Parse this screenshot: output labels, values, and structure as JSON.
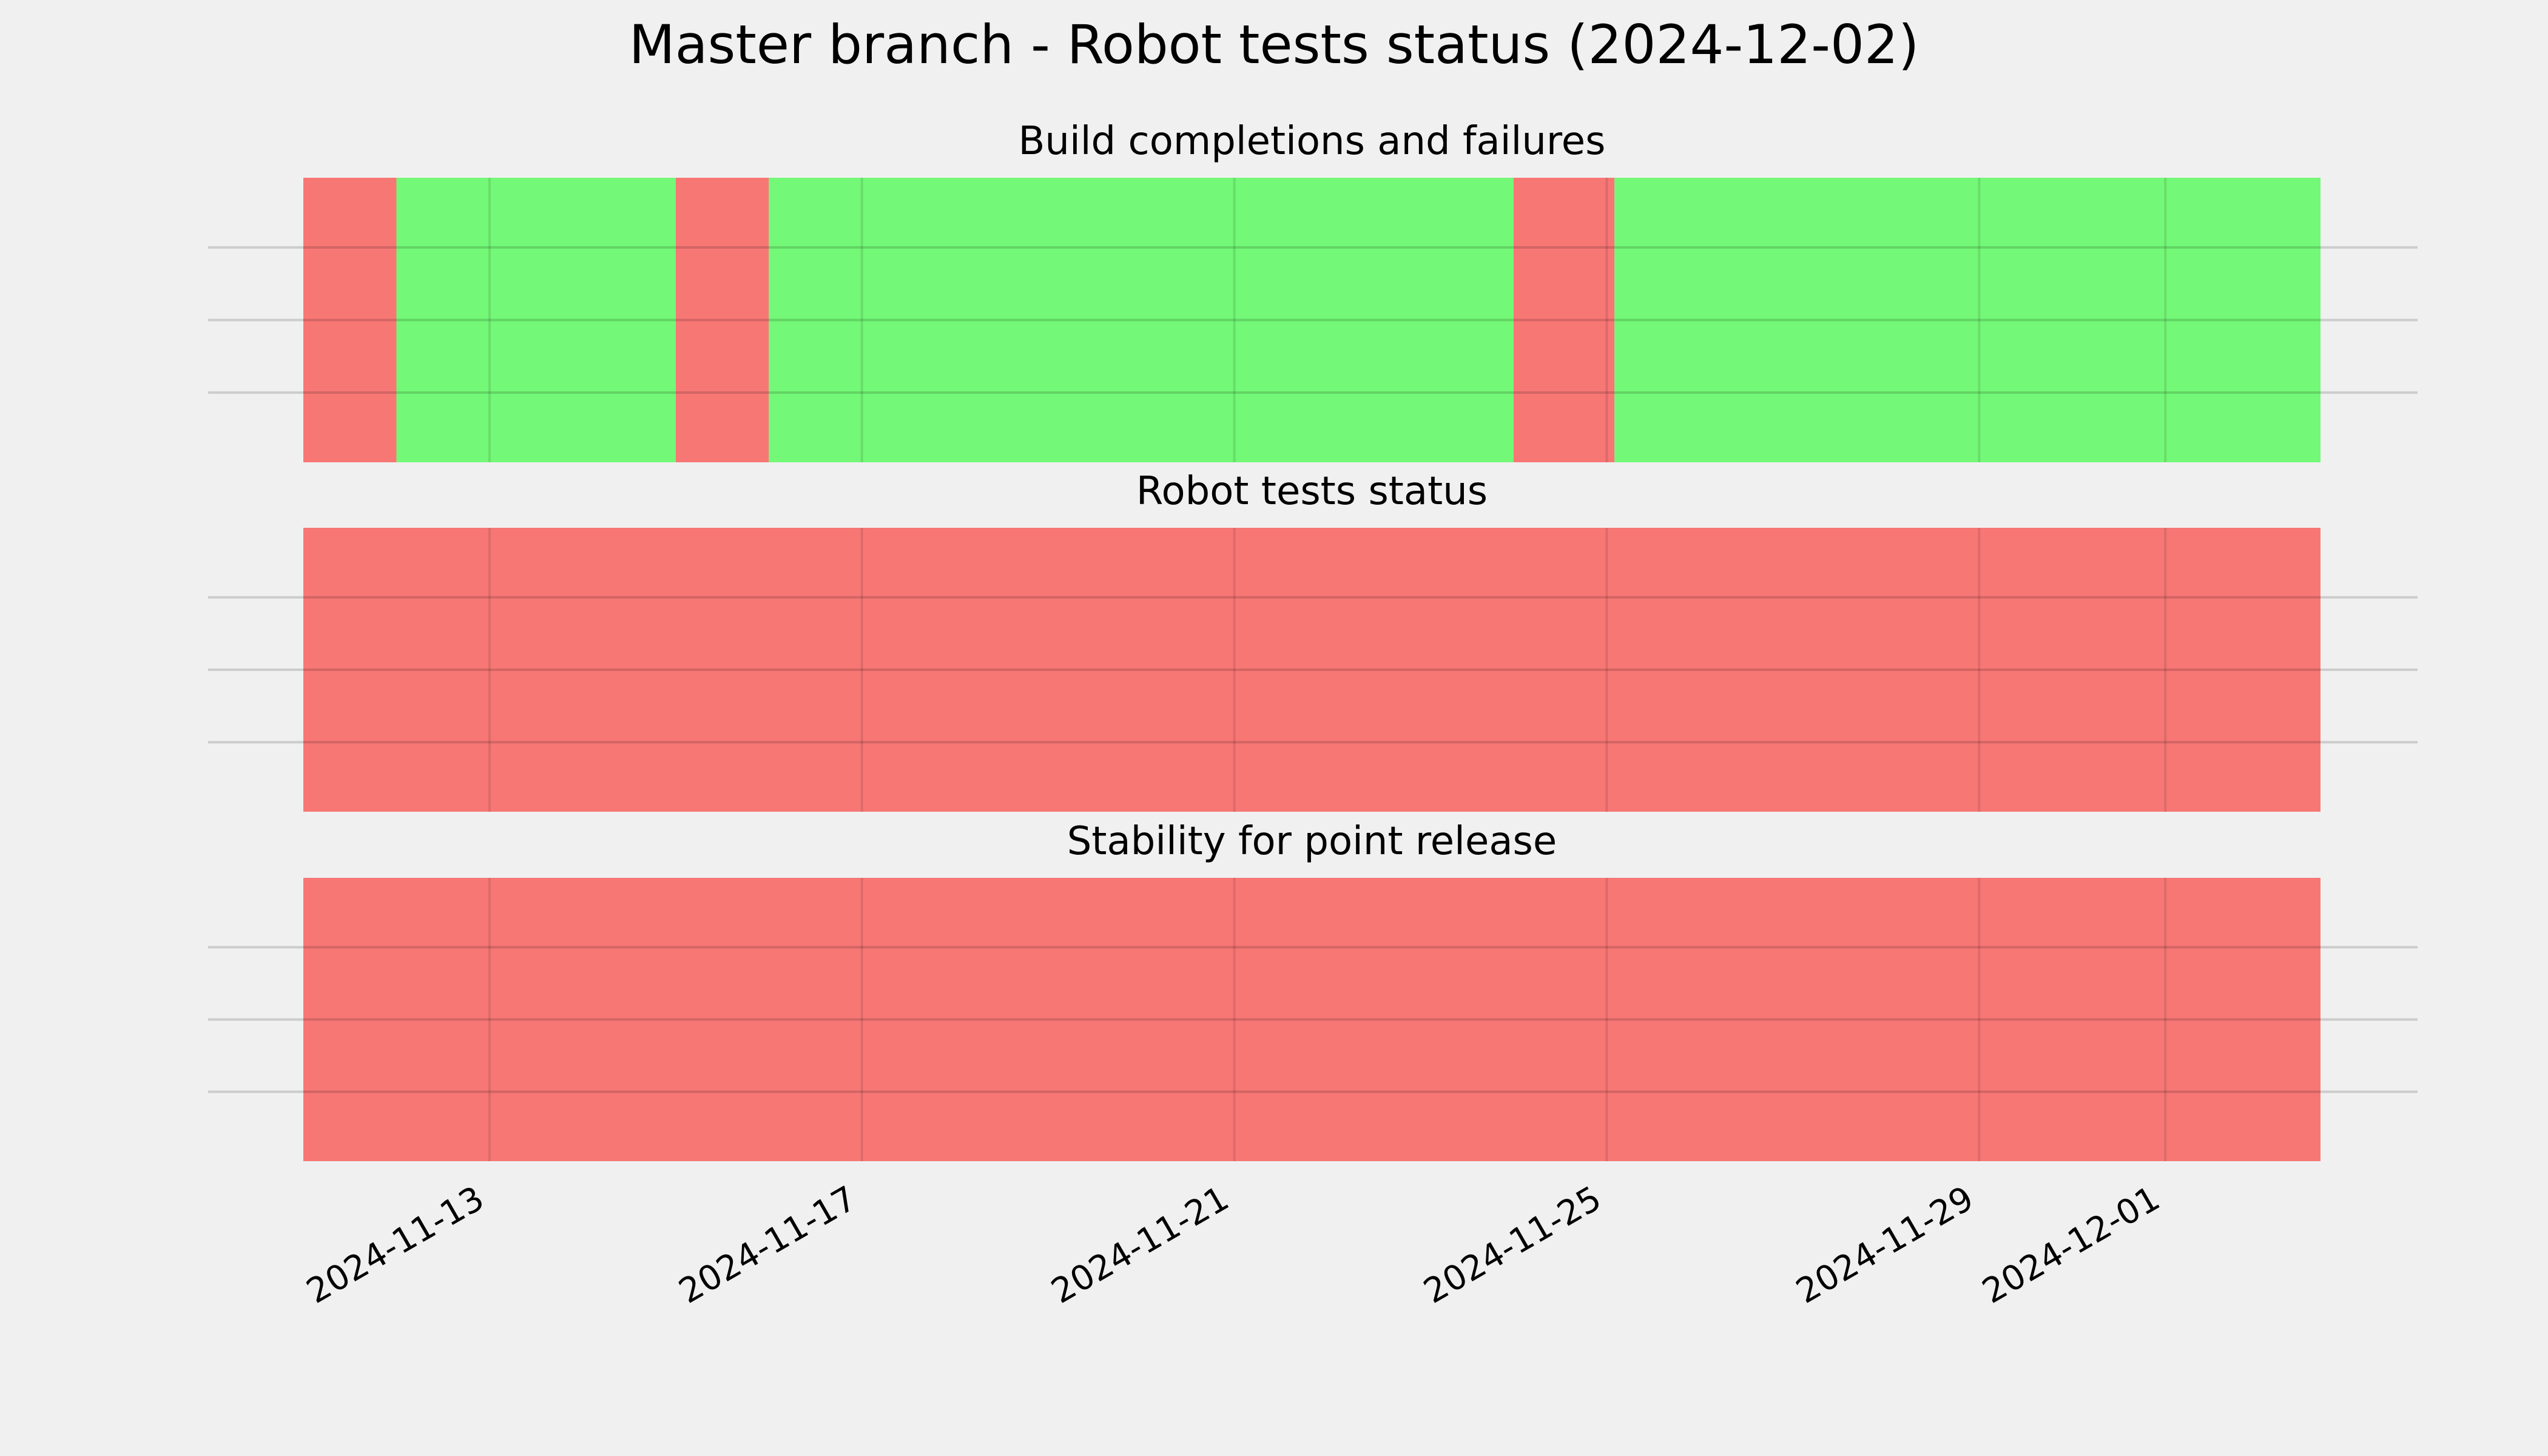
{
  "chart_data": [
    {
      "type": "bar",
      "title": "Build completions and failures",
      "x_tick_labels": [
        "2024-11-13",
        "2024-11-17",
        "2024-11-21",
        "2024-11-25",
        "2024-11-29",
        "2024-12-01"
      ],
      "x_range": [
        "2024-11-11",
        "2024-12-02 16:00"
      ],
      "grid": true,
      "segments": [
        {
          "start": "2024-11-11 00:00",
          "end": "2024-11-12 00:00",
          "status": "fail"
        },
        {
          "start": "2024-11-12 00:00",
          "end": "2024-11-15 00:00",
          "status": "pass"
        },
        {
          "start": "2024-11-15 00:00",
          "end": "2024-11-16 00:00",
          "status": "fail"
        },
        {
          "start": "2024-11-16 00:00",
          "end": "2024-11-24 00:00",
          "status": "pass"
        },
        {
          "start": "2024-11-24 00:00",
          "end": "2024-11-25 02:00",
          "status": "fail"
        },
        {
          "start": "2024-11-25 02:00",
          "end": "2024-12-02 16:00",
          "status": "pass"
        }
      ]
    },
    {
      "type": "bar",
      "title": "Robot tests status",
      "x_tick_labels": [
        "2024-11-13",
        "2024-11-17",
        "2024-11-21",
        "2024-11-25",
        "2024-11-29",
        "2024-12-01"
      ],
      "x_range": [
        "2024-11-11",
        "2024-12-02 16:00"
      ],
      "grid": true,
      "segments": [
        {
          "start": "2024-11-11 00:00",
          "end": "2024-12-02 16:00",
          "status": "fail"
        }
      ]
    },
    {
      "type": "bar",
      "title": "Stability for point release",
      "x_tick_labels": [
        "2024-11-13",
        "2024-11-17",
        "2024-11-21",
        "2024-11-25",
        "2024-11-29",
        "2024-12-01"
      ],
      "x_range": [
        "2024-11-11",
        "2024-12-02 16:00"
      ],
      "grid": true,
      "segments": [
        {
          "start": "2024-11-11 00:00",
          "end": "2024-12-02 16:00",
          "status": "fail"
        }
      ]
    }
  ],
  "suptitle": "Master branch - Robot tests status (2024-12-02)",
  "colors": {
    "pass": "#74f877",
    "fail": "#f77775",
    "background": "#f0f0f0",
    "grid": "#cbcbcb"
  }
}
